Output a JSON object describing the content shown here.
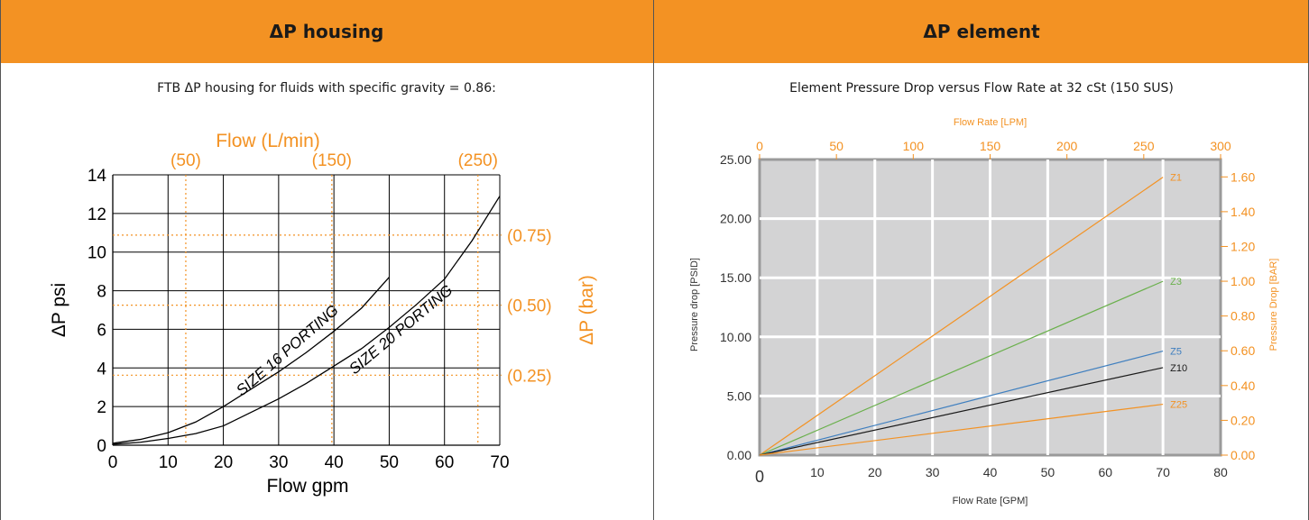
{
  "colors": {
    "header_bg": "#f39223",
    "orange": "#f39223",
    "green": "#6ab04c",
    "blue": "#3f7fbf",
    "black": "#1a1a1a",
    "plot_bg": "#d3d3d4"
  },
  "left": {
    "header": "ΔP housing",
    "subtitle": "FTB ΔP housing for fluids with specific  gravity = 0.86:"
  },
  "right": {
    "header": "ΔP element",
    "subtitle": "Element Pressure Drop versus Flow Rate at 32 cSt (150 SUS)"
  },
  "chart_data": [
    {
      "type": "line",
      "title": "",
      "xlabel": "Flow gpm",
      "ylabel": "ΔP psi",
      "x2label": "Flow (L/min)",
      "y2label": "ΔP (bar)",
      "xlim": [
        0,
        70
      ],
      "ylim": [
        0,
        14
      ],
      "xticks": [
        "0",
        "10",
        "20",
        "30",
        "40",
        "50",
        "60",
        "70"
      ],
      "yticks": [
        "0",
        "2",
        "4",
        "6",
        "8",
        "10",
        "12",
        "14"
      ],
      "x2_ref_lines": [
        {
          "label": "(50)",
          "value": 50
        },
        {
          "label": "(150)",
          "value": 150
        },
        {
          "label": "(250)",
          "value": 250
        }
      ],
      "y2_ref_lines": [
        {
          "label": "(0.25)",
          "value": 0.25
        },
        {
          "label": "(0.50)",
          "value": 0.5
        },
        {
          "label": "(0.75)",
          "value": 0.75
        }
      ],
      "grid": true,
      "series": [
        {
          "name": "SIZE 16 PORTING",
          "x": [
            0,
            5,
            10,
            15,
            20,
            25,
            30,
            35,
            40,
            45,
            50
          ],
          "y": [
            0.1,
            0.3,
            0.65,
            1.2,
            2.0,
            2.9,
            3.8,
            4.8,
            5.9,
            7.1,
            8.7
          ]
        },
        {
          "name": "SIZE 20 PORTING",
          "x": [
            0,
            5,
            10,
            15,
            20,
            25,
            30,
            35,
            40,
            45,
            50,
            55,
            60,
            65,
            70
          ],
          "y": [
            0.05,
            0.15,
            0.35,
            0.6,
            1.0,
            1.7,
            2.4,
            3.2,
            4.1,
            5.0,
            6.1,
            7.3,
            8.6,
            10.6,
            12.9
          ]
        }
      ]
    },
    {
      "type": "line",
      "title": "",
      "xlabel": "Flow Rate [GPM]",
      "ylabel": "Pressure drop [PSID]",
      "x2label": "Flow Rate [LPM]",
      "y2label": "Pressure Drop [BAR]",
      "xlim": [
        0,
        80
      ],
      "ylim": [
        0,
        25
      ],
      "x2lim": [
        0,
        300
      ],
      "y2lim": [
        0,
        1.7
      ],
      "xticks": [
        "0",
        "10",
        "20",
        "30",
        "40",
        "50",
        "60",
        "70",
        "80"
      ],
      "yticks": [
        "0.00",
        "5.00",
        "10.00",
        "15.00",
        "20.00",
        "25.00"
      ],
      "x2ticks": [
        "0",
        "50",
        "100",
        "150",
        "200",
        "250",
        "300"
      ],
      "y2ticks": [
        "0.00",
        "0.20",
        "0.40",
        "0.60",
        "0.80",
        "1.00",
        "1.20",
        "1.40",
        "1.60"
      ],
      "grid": true,
      "series": [
        {
          "name": "Z1",
          "color": "orange",
          "x": [
            0,
            70
          ],
          "y": [
            0,
            23.5
          ]
        },
        {
          "name": "Z3",
          "color": "green",
          "x": [
            0,
            70
          ],
          "y": [
            0,
            14.7
          ]
        },
        {
          "name": "Z5",
          "color": "blue",
          "x": [
            0,
            70
          ],
          "y": [
            0,
            8.8
          ]
        },
        {
          "name": "Z10",
          "color": "black",
          "x": [
            0,
            70
          ],
          "y": [
            0,
            7.4
          ]
        },
        {
          "name": "Z25",
          "color": "orange",
          "x": [
            0,
            70
          ],
          "y": [
            0,
            4.3
          ]
        }
      ]
    }
  ]
}
